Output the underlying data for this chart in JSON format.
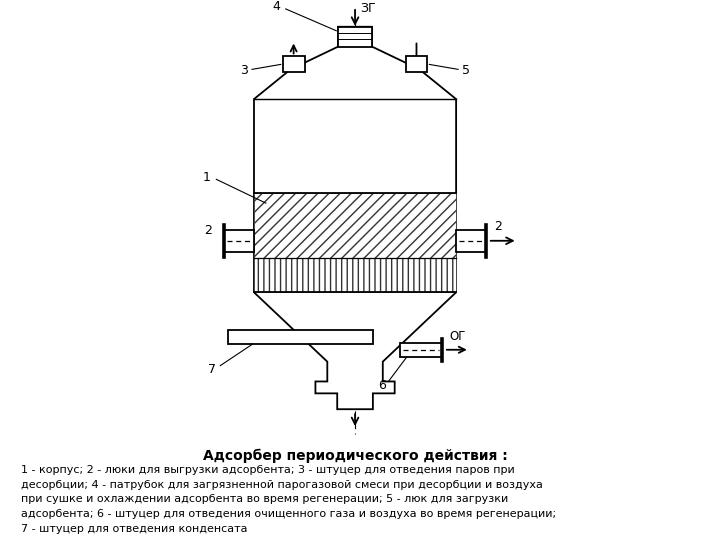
{
  "title": "Адсорбер периодического действия :",
  "caption_line1": "1 - корпус; 2 - люки для выгрузки адсорбента; 3 - штуцер для отведения паров при",
  "caption_line2": "десорбции; 4 - патрубок для загрязненной парогазовой смеси при десорбции и воздуха",
  "caption_line3": "при сушке и охлаждении адсорбента во время регенерации; 5 - люк для загрузки",
  "caption_line4": "адсорбента; 6 - штуцер для отведения очищенного газа и воздуха во время регенерации;",
  "caption_line5": "7 - штуцер для отведения конденсата",
  "bg_color": "#ffffff",
  "line_color": "#000000",
  "fig_width": 7.2,
  "fig_height": 5.4
}
